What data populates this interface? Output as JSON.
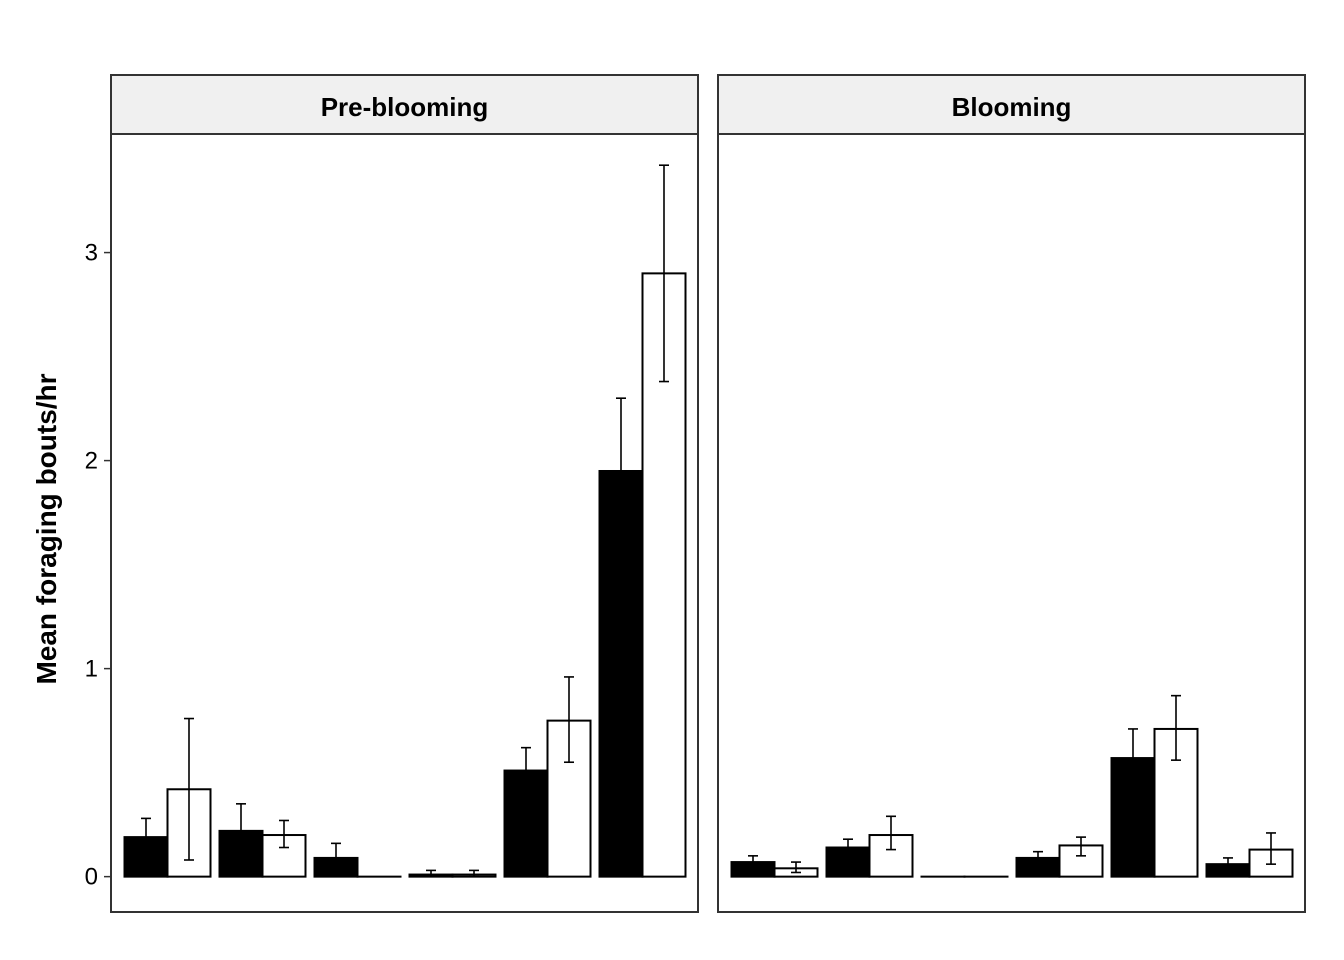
{
  "chart_data": {
    "type": "bar",
    "ylabel": "Mean foraging bouts/hr",
    "ylim": [
      -0.17,
      3.57
    ],
    "yticks": [
      0,
      1,
      2,
      3
    ],
    "grid": false,
    "legend": "none",
    "colors": {
      "series_a": "#000000",
      "series_b": "#ffffff",
      "strip_bg": "#f0f0f0"
    },
    "panels": [
      {
        "title": "Pre-blooming",
        "groups": [
          {
            "a": {
              "value": 0.19,
              "lo": 0.09,
              "hi": 0.28
            },
            "b": {
              "value": 0.42,
              "lo": 0.08,
              "hi": 0.76
            }
          },
          {
            "a": {
              "value": 0.22,
              "lo": 0.09,
              "hi": 0.35
            },
            "b": {
              "value": 0.2,
              "lo": 0.14,
              "hi": 0.27
            }
          },
          {
            "a": {
              "value": 0.09,
              "lo": 0.03,
              "hi": 0.16
            },
            "b": {
              "value": 0.0,
              "lo": 0.0,
              "hi": 0.0
            }
          },
          {
            "a": {
              "value": 0.01,
              "lo": 0.0,
              "hi": 0.03
            },
            "b": {
              "value": 0.01,
              "lo": 0.0,
              "hi": 0.03
            }
          },
          {
            "a": {
              "value": 0.51,
              "lo": 0.41,
              "hi": 0.62
            },
            "b": {
              "value": 0.75,
              "lo": 0.55,
              "hi": 0.96
            }
          },
          {
            "a": {
              "value": 1.95,
              "lo": 1.6,
              "hi": 2.3
            },
            "b": {
              "value": 2.9,
              "lo": 2.38,
              "hi": 3.42
            }
          }
        ]
      },
      {
        "title": "Blooming",
        "groups": [
          {
            "a": {
              "value": 0.07,
              "lo": 0.04,
              "hi": 0.1
            },
            "b": {
              "value": 0.04,
              "lo": 0.02,
              "hi": 0.07
            }
          },
          {
            "a": {
              "value": 0.14,
              "lo": 0.09,
              "hi": 0.18
            },
            "b": {
              "value": 0.2,
              "lo": 0.13,
              "hi": 0.29
            }
          },
          {
            "a": {
              "value": 0.0,
              "lo": 0.0,
              "hi": 0.0
            },
            "b": {
              "value": 0.0,
              "lo": 0.0,
              "hi": 0.0
            }
          },
          {
            "a": {
              "value": 0.09,
              "lo": 0.06,
              "hi": 0.12
            },
            "b": {
              "value": 0.15,
              "lo": 0.1,
              "hi": 0.19
            }
          },
          {
            "a": {
              "value": 0.57,
              "lo": 0.44,
              "hi": 0.71
            },
            "b": {
              "value": 0.71,
              "lo": 0.56,
              "hi": 0.87
            }
          },
          {
            "a": {
              "value": 0.06,
              "lo": 0.03,
              "hi": 0.09
            },
            "b": {
              "value": 0.13,
              "lo": 0.06,
              "hi": 0.21
            }
          }
        ]
      }
    ]
  }
}
